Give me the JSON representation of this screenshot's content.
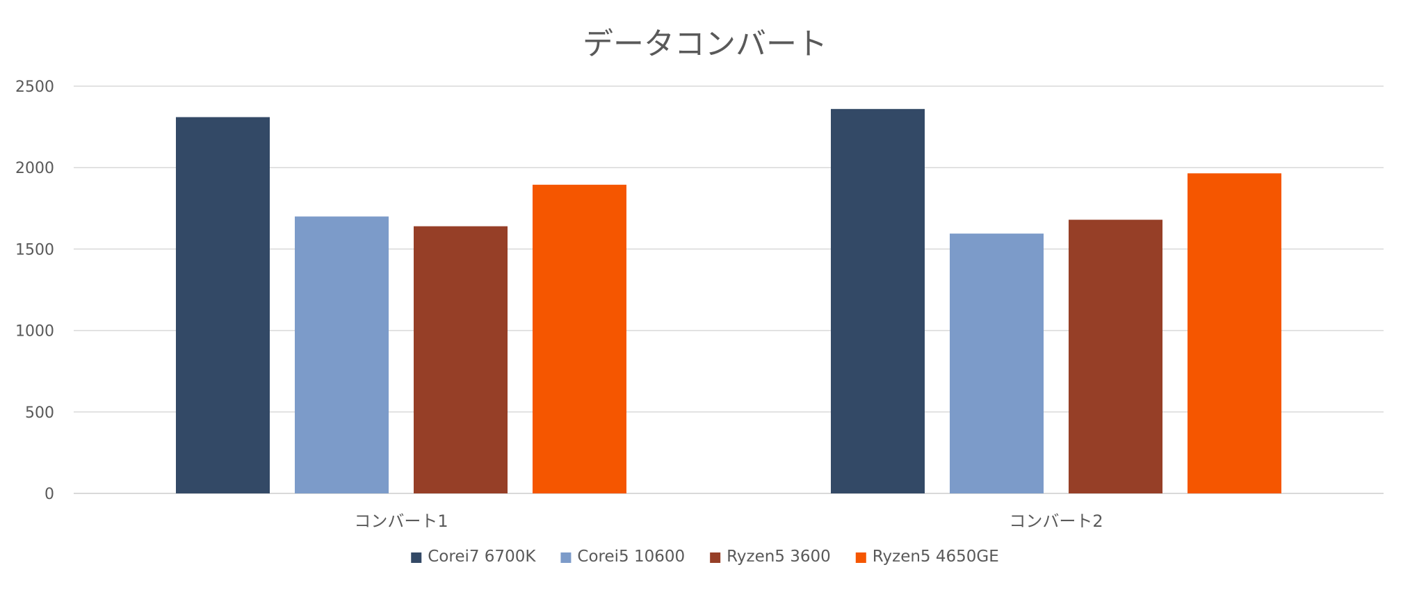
{
  "chart_data": {
    "type": "bar",
    "title": "データコンバート",
    "xlabel": "",
    "ylabel": "",
    "categories": [
      "コンバート1",
      "コンバート2"
    ],
    "series": [
      {
        "name": "Corei7 6700K",
        "color": "#334966",
        "values": [
          2310,
          2360
        ]
      },
      {
        "name": "Corei5 10600",
        "color": "#7c9bc9",
        "values": [
          1700,
          1595
        ]
      },
      {
        "name": "Ryzen5 3600",
        "color": "#963f27",
        "values": [
          1640,
          1680
        ]
      },
      {
        "name": "Ryzen5 4650GE",
        "color": "#f55600",
        "values": [
          1895,
          1965
        ]
      }
    ],
    "ylim": [
      0,
      2500
    ],
    "yticks": [
      0,
      500,
      1000,
      1500,
      2000,
      2500
    ],
    "ytick_labels": [
      "0",
      "500",
      "1000",
      "1500",
      "2000",
      "2500"
    ],
    "grid": true,
    "legend_position": "bottom"
  }
}
